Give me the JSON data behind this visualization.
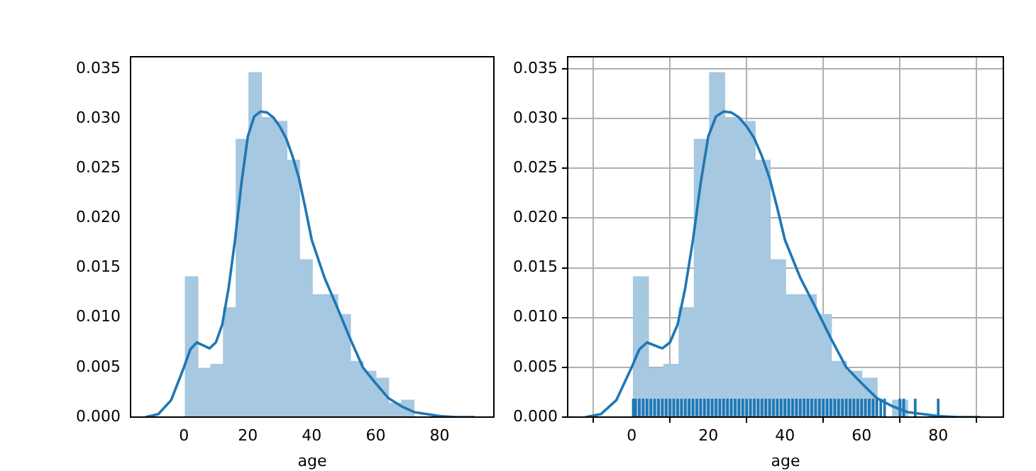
{
  "chart_data": [
    {
      "type": "histogram",
      "xlabel": "age",
      "color": "#a6c8e0",
      "bins": [
        0.42,
        4.4,
        8.38,
        12.36,
        16.34,
        20.3,
        24.3,
        28.3,
        32.2,
        36.2,
        40.2,
        44.2,
        48.2,
        52.1,
        56.1,
        60.1,
        64.1,
        68.1,
        72.0,
        76.0,
        80.0
      ],
      "values": [
        0.0141,
        0.0049,
        0.0053,
        0.011,
        0.0279,
        0.0346,
        0.0301,
        0.0297,
        0.0258,
        0.0158,
        0.0123,
        0.0123,
        0.0103,
        0.0056,
        0.0046,
        0.0039,
        0.0014,
        0.0017,
        null,
        null
      ],
      "series": [
        {
          "type": "line",
          "color": "#1f77b4",
          "x": [
            -12,
            -8,
            -4,
            0,
            2,
            4,
            6,
            8,
            10,
            12,
            14,
            16,
            18,
            20,
            22,
            24,
            26,
            28,
            30,
            32,
            34,
            36,
            38,
            40,
            44,
            48,
            52,
            56,
            60,
            64,
            68,
            72,
            76,
            80,
            85,
            91
          ],
          "values": [
            0,
            0.0003,
            0.0017,
            0.005,
            0.0068,
            0.0075,
            0.0072,
            0.0069,
            0.0075,
            0.0093,
            0.013,
            0.0178,
            0.0235,
            0.0282,
            0.0302,
            0.0307,
            0.0306,
            0.0301,
            0.0292,
            0.028,
            0.0262,
            0.024,
            0.021,
            0.0178,
            0.014,
            0.011,
            0.0079,
            0.005,
            0.0034,
            0.0019,
            0.0011,
            0.0005,
            0.0003,
            0.0001,
            0,
            0
          ]
        }
      ],
      "xlim": [
        -16.7,
        97
      ],
      "xticks": [
        0,
        20,
        40,
        60,
        80
      ],
      "ylim": [
        0,
        0.0362
      ],
      "yticks": [
        {
          "value": 0,
          "label": "0.000"
        },
        {
          "value": 0.005,
          "label": "0.005"
        },
        {
          "value": 0.01,
          "label": "0.010"
        },
        {
          "value": 0.015,
          "label": "0.015"
        },
        {
          "value": 0.02,
          "label": "0.020"
        },
        {
          "value": 0.025,
          "label": "0.025"
        },
        {
          "value": 0.03,
          "label": "0.030"
        },
        {
          "value": 0.035,
          "label": "0.035"
        }
      ],
      "grid": false,
      "legend": false
    },
    {
      "type": "histogram",
      "xlabel": "age",
      "color": "#a6c8e0",
      "bins": [
        0.42,
        4.4,
        8.38,
        12.36,
        16.34,
        20.3,
        24.3,
        28.3,
        32.2,
        36.2,
        40.2,
        44.2,
        48.2,
        52.1,
        56.1,
        60.1,
        64.1,
        68.1,
        72.0,
        76.0,
        80.0
      ],
      "values": [
        0.0141,
        0.0049,
        0.0053,
        0.011,
        0.0279,
        0.0346,
        0.0301,
        0.0297,
        0.0258,
        0.0158,
        0.0123,
        0.0123,
        0.0103,
        0.0056,
        0.0046,
        0.0039,
        null,
        0.0017,
        null,
        null
      ],
      "series": [
        {
          "type": "line",
          "color": "#1f77b4",
          "x": [
            -12,
            -8,
            -4,
            0,
            2,
            4,
            6,
            8,
            10,
            12,
            14,
            16,
            18,
            20,
            22,
            24,
            26,
            28,
            30,
            32,
            34,
            36,
            38,
            40,
            44,
            48,
            52,
            56,
            60,
            64,
            68,
            72,
            76,
            80,
            85,
            91
          ],
          "values": [
            0,
            0.0003,
            0.0017,
            0.005,
            0.0068,
            0.0075,
            0.0072,
            0.0069,
            0.0075,
            0.0093,
            0.013,
            0.0178,
            0.0235,
            0.0282,
            0.0302,
            0.0307,
            0.0306,
            0.0301,
            0.0292,
            0.028,
            0.0262,
            0.024,
            0.021,
            0.0178,
            0.014,
            0.011,
            0.0079,
            0.005,
            0.0034,
            0.0019,
            0.0011,
            0.0005,
            0.0003,
            0.0001,
            0,
            0
          ]
        },
        {
          "type": "bar",
          "color": "#1f77b4",
          "x": [
            0.42,
            1,
            2,
            3,
            4,
            5,
            6,
            7,
            8,
            9,
            10,
            11,
            12,
            13,
            14,
            15,
            16,
            17,
            18,
            19,
            20,
            21,
            22,
            23,
            24,
            25,
            26,
            27,
            28,
            29,
            30,
            31,
            32,
            33,
            34,
            35,
            36,
            37,
            38,
            39,
            40,
            41,
            42,
            43,
            44,
            45,
            46,
            47,
            48,
            49,
            50,
            51,
            52,
            53,
            54,
            55,
            56,
            57,
            58,
            59,
            60,
            61,
            62,
            63,
            64,
            65,
            66,
            70,
            71,
            74,
            80
          ],
          "values": [
            0.0018,
            0.0018,
            0.0018,
            0.0018,
            0.0018,
            0.0018,
            0.0018,
            0.0018,
            0.0018,
            0.0018,
            0.0018,
            0.0018,
            0.0018,
            0.0018,
            0.0018,
            0.0018,
            0.0018,
            0.0018,
            0.0018,
            0.0018,
            0.0018,
            0.0018,
            0.0018,
            0.0018,
            0.0018,
            0.0018,
            0.0018,
            0.0018,
            0.0018,
            0.0018,
            0.0018,
            0.0018,
            0.0018,
            0.0018,
            0.0018,
            0.0018,
            0.0018,
            0.0018,
            0.0018,
            0.0018,
            0.0018,
            0.0018,
            0.0018,
            0.0018,
            0.0018,
            0.0018,
            0.0018,
            0.0018,
            0.0018,
            0.0018,
            0.0018,
            0.0018,
            0.0018,
            0.0018,
            0.0018,
            0.0018,
            0.0018,
            0.0018,
            0.0018,
            0.0018,
            0.0018,
            0.0018,
            0.0018,
            0.0018,
            0.0018,
            0.0018,
            0.0018,
            0.0018,
            0.0018,
            0.0018,
            0.0018
          ]
        }
      ],
      "xlim": [
        -16.7,
        97
      ],
      "xticks": [
        0,
        20,
        40,
        60,
        80
      ],
      "ylim": [
        0,
        0.0362
      ],
      "yticks": [
        {
          "value": 0,
          "label": "0.000"
        },
        {
          "value": 0.005,
          "label": "0.005"
        },
        {
          "value": 0.01,
          "label": "0.010"
        },
        {
          "value": 0.015,
          "label": "0.015"
        },
        {
          "value": 0.02,
          "label": "0.020"
        },
        {
          "value": 0.025,
          "label": "0.025"
        },
        {
          "value": 0.03,
          "label": "0.030"
        },
        {
          "value": 0.035,
          "label": "0.035"
        }
      ],
      "grid": true,
      "legend": false
    }
  ]
}
